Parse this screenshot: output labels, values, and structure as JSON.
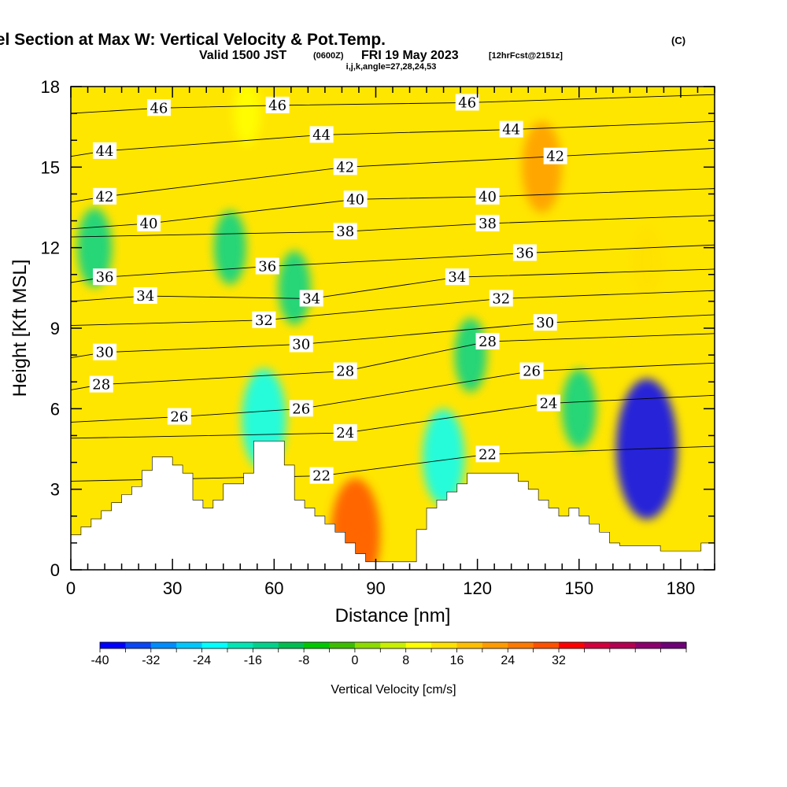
{
  "header": {
    "title_main": "Wind-Parallel Section at Max W: Vertical Velocity & Pot.Temp.",
    "title_mark": "(C)",
    "valid_prefix": "Valid 1500 JST",
    "valid_zulu": "(0600Z)",
    "valid_date": "FRI 19 May 2023",
    "forecast": "[12hrFcst@2151z]",
    "indices": "i,j,k,angle=27,28,24,53"
  },
  "chart_data": {
    "type": "heatmap",
    "xlabel": "Distance [nm]",
    "ylabel": "Height [Kft MSL]",
    "xlim": [
      0,
      190
    ],
    "ylim": [
      0,
      18
    ],
    "x_ticks": [
      0,
      30,
      60,
      90,
      120,
      150,
      180
    ],
    "y_ticks": [
      0,
      3,
      6,
      9,
      12,
      15,
      18
    ],
    "colorbar": {
      "label": "Vertical Velocity [cm/s]",
      "min": -40,
      "max": 38,
      "step": 4,
      "tick_labels": [
        "-40",
        "-32",
        "-24",
        "-16",
        "-8",
        "0",
        "8",
        "16",
        "24",
        "32"
      ],
      "colors": [
        "#0000ff",
        "#0a46f5",
        "#008cff",
        "#00c8ff",
        "#00ffff",
        "#00e6b4",
        "#00d28c",
        "#00be50",
        "#00c800",
        "#3cbe00",
        "#8cdc00",
        "#c8f000",
        "#ffff00",
        "#ffe100",
        "#ffbe00",
        "#ff9b00",
        "#ff7800",
        "#ff5000",
        "#ff0000",
        "#d2003c",
        "#b40050",
        "#8c006e",
        "#6e0078"
      ]
    },
    "terrain": [
      [
        0,
        1.3
      ],
      [
        3,
        1.3
      ],
      [
        3,
        1.6
      ],
      [
        6,
        1.6
      ],
      [
        6,
        1.9
      ],
      [
        9,
        1.9
      ],
      [
        9,
        2.2
      ],
      [
        12,
        2.2
      ],
      [
        12,
        2.5
      ],
      [
        15,
        2.5
      ],
      [
        15,
        2.8
      ],
      [
        18,
        2.8
      ],
      [
        18,
        3.1
      ],
      [
        21,
        3.1
      ],
      [
        21,
        3.7
      ],
      [
        24,
        3.7
      ],
      [
        24,
        4.2
      ],
      [
        30,
        4.2
      ],
      [
        30,
        3.9
      ],
      [
        33,
        3.9
      ],
      [
        33,
        3.6
      ],
      [
        36,
        3.6
      ],
      [
        36,
        2.6
      ],
      [
        39,
        2.6
      ],
      [
        39,
        2.3
      ],
      [
        42,
        2.3
      ],
      [
        42,
        2.6
      ],
      [
        45,
        2.6
      ],
      [
        45,
        3.2
      ],
      [
        51,
        3.2
      ],
      [
        51,
        3.6
      ],
      [
        54,
        3.6
      ],
      [
        54,
        4.8
      ],
      [
        63,
        4.8
      ],
      [
        63,
        3.9
      ],
      [
        66,
        3.9
      ],
      [
        66,
        2.6
      ],
      [
        69,
        2.6
      ],
      [
        69,
        2.3
      ],
      [
        72,
        2.3
      ],
      [
        72,
        2.0
      ],
      [
        75,
        2.0
      ],
      [
        75,
        1.7
      ],
      [
        78,
        1.7
      ],
      [
        78,
        1.4
      ],
      [
        81,
        1.4
      ],
      [
        81,
        1.0
      ],
      [
        84,
        1.0
      ],
      [
        84,
        0.6
      ],
      [
        87,
        0.6
      ],
      [
        87,
        0.3
      ],
      [
        102,
        0.3
      ],
      [
        102,
        1.5
      ],
      [
        105,
        1.5
      ],
      [
        105,
        2.3
      ],
      [
        108,
        2.3
      ],
      [
        108,
        2.6
      ],
      [
        111,
        2.6
      ],
      [
        111,
        2.9
      ],
      [
        114,
        2.9
      ],
      [
        114,
        3.2
      ],
      [
        117,
        3.2
      ],
      [
        117,
        3.6
      ],
      [
        132,
        3.6
      ],
      [
        132,
        3.3
      ],
      [
        135,
        3.3
      ],
      [
        135,
        3.0
      ],
      [
        138,
        3.0
      ],
      [
        138,
        2.6
      ],
      [
        141,
        2.6
      ],
      [
        141,
        2.3
      ],
      [
        144,
        2.3
      ],
      [
        144,
        2.0
      ],
      [
        147,
        2.0
      ],
      [
        147,
        2.3
      ],
      [
        150,
        2.3
      ],
      [
        150,
        2.0
      ],
      [
        153,
        2.0
      ],
      [
        153,
        1.7
      ],
      [
        156,
        1.7
      ],
      [
        156,
        1.4
      ],
      [
        159,
        1.4
      ],
      [
        159,
        1.0
      ],
      [
        162,
        1.0
      ],
      [
        162,
        0.9
      ],
      [
        168,
        0.9
      ],
      [
        168,
        0.9
      ],
      [
        174,
        0.9
      ],
      [
        174,
        0.7
      ],
      [
        180,
        0.7
      ],
      [
        180,
        0.7
      ],
      [
        183,
        0.7
      ],
      [
        183,
        0.7
      ],
      [
        186,
        0.7
      ],
      [
        186,
        1.0
      ],
      [
        190,
        1.0
      ]
    ],
    "contour_labels": [
      {
        "text": "46",
        "x": 26,
        "y": 17.2
      },
      {
        "text": "46",
        "x": 61,
        "y": 17.3
      },
      {
        "text": "46",
        "x": 117,
        "y": 17.4
      },
      {
        "text": "44",
        "x": 10,
        "y": 15.6
      },
      {
        "text": "44",
        "x": 74,
        "y": 16.2
      },
      {
        "text": "44",
        "x": 130,
        "y": 16.4
      },
      {
        "text": "42",
        "x": 10,
        "y": 13.9
      },
      {
        "text": "42",
        "x": 81,
        "y": 15.0
      },
      {
        "text": "42",
        "x": 143,
        "y": 15.4
      },
      {
        "text": "40",
        "x": 23,
        "y": 12.9
      },
      {
        "text": "40",
        "x": 84,
        "y": 13.8
      },
      {
        "text": "40",
        "x": 123,
        "y": 13.9
      },
      {
        "text": "38",
        "x": 81,
        "y": 12.6
      },
      {
        "text": "38",
        "x": 123,
        "y": 12.9
      },
      {
        "text": "36",
        "x": 10,
        "y": 10.9
      },
      {
        "text": "36",
        "x": 58,
        "y": 11.3
      },
      {
        "text": "36",
        "x": 134,
        "y": 11.8
      },
      {
        "text": "34",
        "x": 22,
        "y": 10.2
      },
      {
        "text": "34",
        "x": 71,
        "y": 10.1
      },
      {
        "text": "34",
        "x": 114,
        "y": 10.9
      },
      {
        "text": "32",
        "x": 57,
        "y": 9.3
      },
      {
        "text": "32",
        "x": 127,
        "y": 10.1
      },
      {
        "text": "30",
        "x": 10,
        "y": 8.1
      },
      {
        "text": "30",
        "x": 68,
        "y": 8.4
      },
      {
        "text": "30",
        "x": 140,
        "y": 9.2
      },
      {
        "text": "28",
        "x": 9,
        "y": 6.9
      },
      {
        "text": "28",
        "x": 81,
        "y": 7.4
      },
      {
        "text": "28",
        "x": 123,
        "y": 8.5
      },
      {
        "text": "26",
        "x": 32,
        "y": 5.7
      },
      {
        "text": "26",
        "x": 68,
        "y": 6.0
      },
      {
        "text": "26",
        "x": 136,
        "y": 7.4
      },
      {
        "text": "24",
        "x": 81,
        "y": 5.1
      },
      {
        "text": "24",
        "x": 141,
        "y": 6.2
      },
      {
        "text": "22",
        "x": 74,
        "y": 3.5
      },
      {
        "text": "22",
        "x": 123,
        "y": 4.3
      }
    ],
    "vertical_velocity_features": [
      {
        "sign": "up",
        "value": 28,
        "x": 84,
        "y": 1.3
      },
      {
        "sign": "up",
        "value": 20,
        "x": 139,
        "y": 15
      },
      {
        "sign": "up",
        "value": 12,
        "x": 170,
        "y": 11.5
      },
      {
        "sign": "up",
        "value": 10,
        "x": 52,
        "y": 17
      },
      {
        "sign": "down",
        "value": -38,
        "x": 170,
        "y": 4.5
      },
      {
        "sign": "down",
        "value": -22,
        "x": 110,
        "y": 4.2
      },
      {
        "sign": "down",
        "value": -24,
        "x": 57,
        "y": 5.6
      },
      {
        "sign": "down",
        "value": -16,
        "x": 7,
        "y": 12
      },
      {
        "sign": "down",
        "value": -14,
        "x": 47,
        "y": 12
      },
      {
        "sign": "down",
        "value": -14,
        "x": 66,
        "y": 10.5
      },
      {
        "sign": "down",
        "value": -14,
        "x": 118,
        "y": 8
      },
      {
        "sign": "down",
        "value": -16,
        "x": 150,
        "y": 6
      }
    ]
  }
}
